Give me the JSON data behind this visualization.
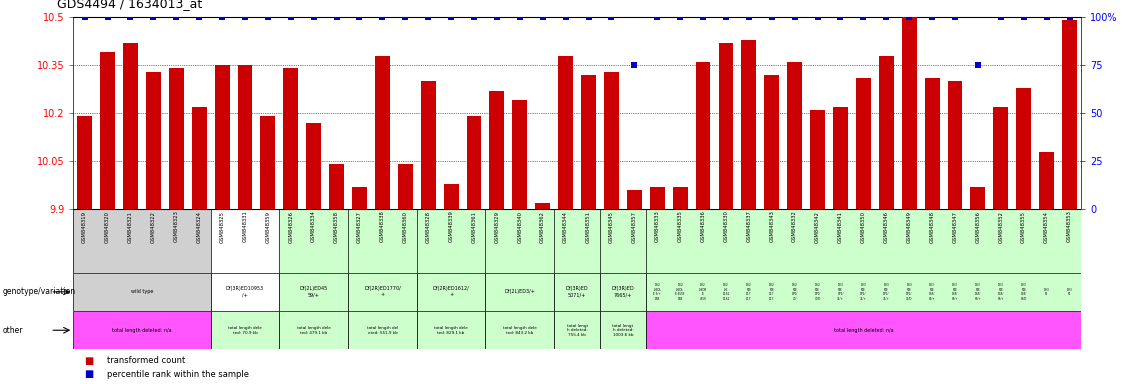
{
  "title": "GDS4494 / 1634013_at",
  "samples": [
    "GSM848319",
    "GSM848320",
    "GSM848321",
    "GSM848322",
    "GSM848323",
    "GSM848324",
    "GSM848325",
    "GSM848331",
    "GSM848359",
    "GSM848326",
    "GSM848334",
    "GSM848358",
    "GSM848327",
    "GSM848338",
    "GSM848360",
    "GSM848328",
    "GSM848339",
    "GSM848361",
    "GSM848329",
    "GSM848340",
    "GSM848362",
    "GSM848344",
    "GSM848351",
    "GSM848345",
    "GSM848357",
    "GSM848333",
    "GSM848335",
    "GSM848336",
    "GSM848330",
    "GSM848337",
    "GSM848343",
    "GSM848332",
    "GSM848342",
    "GSM848341",
    "GSM848350",
    "GSM848346",
    "GSM848349",
    "GSM848348",
    "GSM848347",
    "GSM848356",
    "GSM848352",
    "GSM848355",
    "GSM848354",
    "GSM848353"
  ],
  "bar_values": [
    10.19,
    10.39,
    10.42,
    10.33,
    10.34,
    10.22,
    10.35,
    10.35,
    10.19,
    10.34,
    10.17,
    10.04,
    9.97,
    10.38,
    10.04,
    10.3,
    9.98,
    10.19,
    10.27,
    10.24,
    9.92,
    10.38,
    10.32,
    10.33,
    9.96,
    9.97,
    9.97,
    10.36,
    10.42,
    10.43,
    10.32,
    10.36,
    10.21,
    10.22,
    10.31,
    10.38,
    10.58,
    10.31,
    10.3,
    9.97,
    10.22,
    10.28,
    10.08,
    10.49
  ],
  "percentile_values": [
    100,
    100,
    100,
    100,
    100,
    100,
    100,
    100,
    100,
    100,
    100,
    100,
    100,
    100,
    100,
    100,
    100,
    100,
    100,
    100,
    100,
    100,
    100,
    100,
    75,
    100,
    100,
    100,
    100,
    100,
    100,
    100,
    100,
    100,
    100,
    100,
    100,
    100,
    100,
    75,
    100,
    100,
    100,
    100
  ],
  "ymin": 9.9,
  "ymax": 10.5,
  "left_yticks": [
    9.9,
    10.05,
    10.2,
    10.35,
    10.5
  ],
  "right_yticks": [
    0,
    25,
    50,
    75,
    100
  ],
  "bar_color": "#cc0000",
  "dot_color": "#0000cc",
  "n_samples": 44,
  "sample_bg_colors": [
    "#d0d0d0",
    "#d0d0d0",
    "#d0d0d0",
    "#d0d0d0",
    "#d0d0d0",
    "#d0d0d0",
    "#ffffff",
    "#ffffff",
    "#ffffff",
    "#ccffcc",
    "#ccffcc",
    "#ccffcc",
    "#ccffcc",
    "#ccffcc",
    "#ccffcc",
    "#ccffcc",
    "#ccffcc",
    "#ccffcc",
    "#ccffcc",
    "#ccffcc",
    "#ccffcc",
    "#ccffcc",
    "#ccffcc",
    "#ccffcc",
    "#ccffcc",
    "#ccffcc",
    "#ccffcc",
    "#ccffcc",
    "#ccffcc",
    "#ccffcc",
    "#ccffcc",
    "#ccffcc",
    "#ccffcc",
    "#ccffcc",
    "#ccffcc",
    "#ccffcc",
    "#ccffcc",
    "#ccffcc",
    "#ccffcc",
    "#ccffcc",
    "#ccffcc",
    "#ccffcc",
    "#ccffcc",
    "#ccffcc"
  ],
  "geno_groups": [
    {
      "start": 0,
      "end": 5,
      "bg": "#d0d0d0",
      "label": "wild type"
    },
    {
      "start": 6,
      "end": 8,
      "bg": "#ffffff",
      "label": "Df(3R)ED10953\n/+"
    },
    {
      "start": 9,
      "end": 11,
      "bg": "#ccffcc",
      "label": "Df(2L)ED45\n59/+"
    },
    {
      "start": 12,
      "end": 14,
      "bg": "#ccffcc",
      "label": "Df(2R)ED1770/\n+"
    },
    {
      "start": 15,
      "end": 17,
      "bg": "#ccffcc",
      "label": "Df(2R)ED1612/\n+"
    },
    {
      "start": 18,
      "end": 20,
      "bg": "#ccffcc",
      "label": "Df(2L)ED3/+"
    },
    {
      "start": 21,
      "end": 22,
      "bg": "#ccffcc",
      "label": "Df(3R)ED\n5071/+"
    },
    {
      "start": 23,
      "end": 24,
      "bg": "#ccffcc",
      "label": "Df(3R)ED\n7665/+"
    },
    {
      "start": 25,
      "end": 43,
      "bg": "#ccffcc",
      "label": ""
    }
  ],
  "other_groups": [
    {
      "start": 0,
      "end": 5,
      "bg": "#ff55ff",
      "label": "total length deleted: n/a"
    },
    {
      "start": 6,
      "end": 8,
      "bg": "#ccffcc",
      "label": "total length dele\nted: 70.9 kb"
    },
    {
      "start": 9,
      "end": 11,
      "bg": "#ccffcc",
      "label": "total length dele\nted: 479.1 kb"
    },
    {
      "start": 12,
      "end": 14,
      "bg": "#ccffcc",
      "label": "total length del\neted: 551.9 kb"
    },
    {
      "start": 15,
      "end": 17,
      "bg": "#ccffcc",
      "label": "total length dele\nted: 829.1 kb"
    },
    {
      "start": 18,
      "end": 20,
      "bg": "#ccffcc",
      "label": "total length dele\nted: 843.2 kb"
    },
    {
      "start": 21,
      "end": 22,
      "bg": "#ccffcc",
      "label": "total lengt\nh deleted:\n755.4 kb"
    },
    {
      "start": 23,
      "end": 24,
      "bg": "#ccffcc",
      "label": "total lengt\nh deleted:\n1003.6 kb"
    },
    {
      "start": 25,
      "end": 43,
      "bg": "#ff55ff",
      "label": "total length deleted: n/a"
    }
  ],
  "complex_geno_labels": [
    "Df(2\nL)EDL\nE 3/+\nD45",
    "Df(2\nL)EDL\nE 4559\nD45",
    "Df(2\nL)EDR\n)E\n4559",
    "Df(2\nL)E\nD161\nD161",
    "Df(2\nR)E\nD17\nD17",
    "Df(2\nR)E\nD17\nD17",
    "Df(2\nR)E\nD70/\n70/",
    "Df(2\nR)E\nD70/\n70/D",
    "Df(3\nR)E\nD71/\n71/+",
    "Df(3\nR)E\nD71/\n71/+",
    "Df(3\nR)E\nD71/\n71/+",
    "Df(3\nR)E\nD71/\n71/D",
    "Df(3\nR)E\nD65/\n65/+",
    "Df(3\nR)E\nD65/\n65/+",
    "Df(3\nR)E\nD65/\n65/+",
    "Df(3\nR)E\nD65/\n65/+",
    "Df(3\nR)E\nD65/\n65/D",
    "Df(3\nR)",
    "Df(3\nR)"
  ]
}
